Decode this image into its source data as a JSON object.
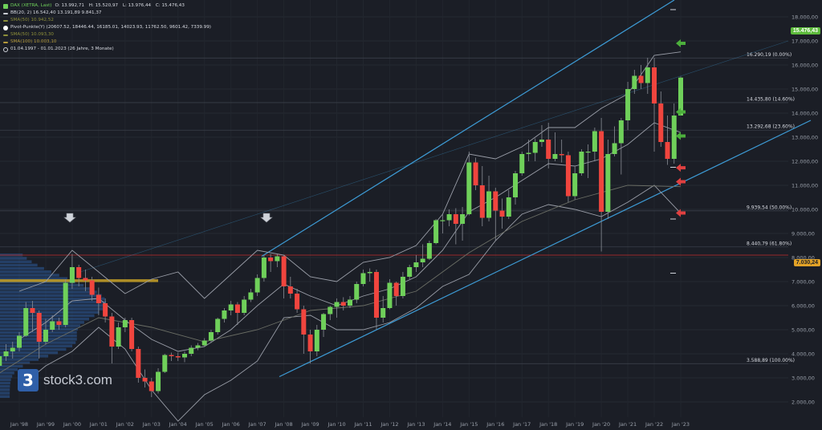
{
  "legend": {
    "instrument": "DAX (XETRA, Last)",
    "ohlc": {
      "o": "O: 13.992,71",
      "h": "H: 15.520,97",
      "l": "L: 13.976,44",
      "c": "C: 15.476,43"
    },
    "bb": "BB(20, 2)  16.542,40  13.191,89  9.841,37",
    "sma_a": "SMA(50)  10.942,52",
    "pivot": "Pivot-Punkte(Y)  (20607.52,  18446.44,  16185.01,  14023.93,  11762.50,  9601.42,  7339.99)",
    "sma_b": "SMA(50)  10.093,30",
    "sma_c": "SMA(100)  10.003,10",
    "period": "01.04.1997 - 01.01.2023   (26 Jahre, 3 Monate)",
    "colors": {
      "instrument": "#6fd05a",
      "bb": "#c9ccd3",
      "sma": "#8d8f3a",
      "pivot": "#ffffff",
      "sma_b": "#b59a3a"
    }
  },
  "logo": {
    "mark": "3",
    "text": "stock3.com"
  },
  "price_tags": {
    "last": "15.476,43",
    "level": "7.030,24",
    "last_color": "#5dbb3c",
    "level_color": "#e2a227"
  },
  "chart_data": {
    "type": "candlestick",
    "x": [
      "Jan '98",
      "Jan '99",
      "Jan '00",
      "Jan '01",
      "Jan '02",
      "Jan '03",
      "Jan '04",
      "Jan '05",
      "Jan '06",
      "Jan '07",
      "Jan '08",
      "Jan '09",
      "Jan '10",
      "Jan '11",
      "Jan '12",
      "Jan '13",
      "Jan '14",
      "Jan '15",
      "Jan '16",
      "Jan '17",
      "Jan '18",
      "Jan '19",
      "Jan '20",
      "Jan '21",
      "Jan '22",
      "Jan '23"
    ],
    "y_ticks": [
      "18.000,00",
      "17.000,00",
      "16.000,00",
      "15.000,00",
      "14.000,00",
      "13.000,00",
      "12.000,00",
      "11.000,00",
      "10.000,00",
      "9.000,00",
      "8.000,00",
      "7.000,00",
      "6.000,00",
      "5.000,00",
      "4.000,00",
      "3.000,00",
      "2.000,00"
    ],
    "ylim": [
      1500,
      18600
    ],
    "fib_levels": [
      {
        "value": 16290.19,
        "label": "16.290,19 (0.00%)"
      },
      {
        "value": 14435.8,
        "label": "14.435,80 (14.60%)"
      },
      {
        "value": 13292.68,
        "label": "13.292,68 (23.60%)"
      },
      {
        "value": 9939.54,
        "label": "9.939,54 (50.00%)"
      },
      {
        "value": 8440.79,
        "label": "8.440,79 (61.80%)"
      },
      {
        "value": 3588.89,
        "label": "3.588,89 (100.00%)"
      }
    ],
    "candles": [
      {
        "t": 1997.25,
        "o": 3500,
        "c": 3900,
        "h": 4150,
        "l": 3400
      },
      {
        "t": 1997.5,
        "o": 3900,
        "c": 4100,
        "h": 4400,
        "l": 3700
      },
      {
        "t": 1997.75,
        "o": 4100,
        "c": 4250,
        "h": 4500,
        "l": 3800
      },
      {
        "t": 1998.0,
        "o": 4250,
        "c": 4750,
        "h": 4900,
        "l": 4100
      },
      {
        "t": 1998.25,
        "o": 4750,
        "c": 5900,
        "h": 6150,
        "l": 4700
      },
      {
        "t": 1998.5,
        "o": 5900,
        "c": 5700,
        "h": 6200,
        "l": 4900
      },
      {
        "t": 1998.75,
        "o": 5700,
        "c": 4500,
        "h": 5800,
        "l": 3800
      },
      {
        "t": 1999.0,
        "o": 4500,
        "c": 5000,
        "h": 5450,
        "l": 4400
      },
      {
        "t": 1999.25,
        "o": 5000,
        "c": 5350,
        "h": 5600,
        "l": 4900
      },
      {
        "t": 1999.5,
        "o": 5350,
        "c": 5200,
        "h": 5500,
        "l": 5000
      },
      {
        "t": 1999.75,
        "o": 5200,
        "c": 6950,
        "h": 7100,
        "l": 5100
      },
      {
        "t": 2000.0,
        "o": 6950,
        "c": 7600,
        "h": 8150,
        "l": 6700
      },
      {
        "t": 2000.25,
        "o": 7600,
        "c": 7150,
        "h": 7700,
        "l": 6800
      },
      {
        "t": 2000.5,
        "o": 7150,
        "c": 7050,
        "h": 7500,
        "l": 6600
      },
      {
        "t": 2000.75,
        "o": 7050,
        "c": 6450,
        "h": 7200,
        "l": 6200
      },
      {
        "t": 2001.0,
        "o": 6450,
        "c": 6100,
        "h": 6750,
        "l": 5600
      },
      {
        "t": 2001.25,
        "o": 6100,
        "c": 5550,
        "h": 6300,
        "l": 5300
      },
      {
        "t": 2001.5,
        "o": 5550,
        "c": 4300,
        "h": 5700,
        "l": 3600
      },
      {
        "t": 2001.75,
        "o": 4300,
        "c": 5100,
        "h": 5300,
        "l": 4200
      },
      {
        "t": 2002.0,
        "o": 5100,
        "c": 5400,
        "h": 5500,
        "l": 4900
      },
      {
        "t": 2002.25,
        "o": 5400,
        "c": 4200,
        "h": 5500,
        "l": 4100
      },
      {
        "t": 2002.5,
        "o": 4200,
        "c": 3000,
        "h": 4300,
        "l": 2800
      },
      {
        "t": 2002.75,
        "o": 3000,
        "c": 2850,
        "h": 3350,
        "l": 2600
      },
      {
        "t": 2003.0,
        "o": 2850,
        "c": 2450,
        "h": 3000,
        "l": 2200
      },
      {
        "t": 2003.25,
        "o": 2450,
        "c": 3250,
        "h": 3400,
        "l": 2350
      },
      {
        "t": 2003.5,
        "o": 3250,
        "c": 3950,
        "h": 4000,
        "l": 3200
      },
      {
        "t": 2003.75,
        "o": 3950,
        "c": 3900,
        "h": 4050,
        "l": 3700
      },
      {
        "t": 2004.0,
        "o": 3900,
        "c": 3850,
        "h": 4050,
        "l": 3700
      },
      {
        "t": 2004.25,
        "o": 3850,
        "c": 4000,
        "h": 4100,
        "l": 3650
      },
      {
        "t": 2004.5,
        "o": 4000,
        "c": 4250,
        "h": 4350,
        "l": 3900
      },
      {
        "t": 2004.75,
        "o": 4250,
        "c": 4350,
        "h": 4450,
        "l": 4150
      },
      {
        "t": 2005.0,
        "o": 4350,
        "c": 4550,
        "h": 4650,
        "l": 4300
      },
      {
        "t": 2005.25,
        "o": 4550,
        "c": 4900,
        "h": 5000,
        "l": 4450
      },
      {
        "t": 2005.5,
        "o": 4900,
        "c": 5450,
        "h": 5500,
        "l": 4800
      },
      {
        "t": 2005.75,
        "o": 5450,
        "c": 5800,
        "h": 5900,
        "l": 5300
      },
      {
        "t": 2006.0,
        "o": 5800,
        "c": 6050,
        "h": 6200,
        "l": 5600
      },
      {
        "t": 2006.25,
        "o": 6050,
        "c": 5700,
        "h": 6150,
        "l": 5200
      },
      {
        "t": 2006.5,
        "o": 5700,
        "c": 6250,
        "h": 6400,
        "l": 5600
      },
      {
        "t": 2006.75,
        "o": 6250,
        "c": 6550,
        "h": 6700,
        "l": 6150
      },
      {
        "t": 2007.0,
        "o": 6550,
        "c": 7150,
        "h": 7300,
        "l": 6400
      },
      {
        "t": 2007.25,
        "o": 7150,
        "c": 8000,
        "h": 8100,
        "l": 7000
      },
      {
        "t": 2007.5,
        "o": 8000,
        "c": 7850,
        "h": 8150,
        "l": 7400
      },
      {
        "t": 2007.75,
        "o": 7850,
        "c": 8050,
        "h": 8150,
        "l": 7600
      },
      {
        "t": 2008.0,
        "o": 8050,
        "c": 6800,
        "h": 8100,
        "l": 6300
      },
      {
        "t": 2008.25,
        "o": 6800,
        "c": 6500,
        "h": 7200,
        "l": 6300
      },
      {
        "t": 2008.5,
        "o": 6500,
        "c": 5850,
        "h": 6700,
        "l": 5700
      },
      {
        "t": 2008.75,
        "o": 5850,
        "c": 4800,
        "h": 6000,
        "l": 4000
      },
      {
        "t": 2009.0,
        "o": 4800,
        "c": 4100,
        "h": 5000,
        "l": 3600
      },
      {
        "t": 2009.25,
        "o": 4100,
        "c": 5000,
        "h": 5200,
        "l": 3900
      },
      {
        "t": 2009.5,
        "o": 5000,
        "c": 5650,
        "h": 5700,
        "l": 4700
      },
      {
        "t": 2009.75,
        "o": 5650,
        "c": 5950,
        "h": 6000,
        "l": 5400
      },
      {
        "t": 2010.0,
        "o": 5950,
        "c": 6150,
        "h": 6300,
        "l": 5500
      },
      {
        "t": 2010.25,
        "o": 6150,
        "c": 6000,
        "h": 6350,
        "l": 5800
      },
      {
        "t": 2010.5,
        "o": 6000,
        "c": 6250,
        "h": 6400,
        "l": 5900
      },
      {
        "t": 2010.75,
        "o": 6250,
        "c": 6900,
        "h": 7000,
        "l": 6100
      },
      {
        "t": 2011.0,
        "o": 6900,
        "c": 7350,
        "h": 7500,
        "l": 6800
      },
      {
        "t": 2011.25,
        "o": 7350,
        "c": 7400,
        "h": 7550,
        "l": 7000
      },
      {
        "t": 2011.5,
        "o": 7400,
        "c": 5500,
        "h": 7500,
        "l": 5000
      },
      {
        "t": 2011.75,
        "o": 5500,
        "c": 5900,
        "h": 6400,
        "l": 5300
      },
      {
        "t": 2012.0,
        "o": 5900,
        "c": 6950,
        "h": 7100,
        "l": 5850
      },
      {
        "t": 2012.25,
        "o": 6950,
        "c": 6400,
        "h": 7000,
        "l": 6000
      },
      {
        "t": 2012.5,
        "o": 6400,
        "c": 7200,
        "h": 7400,
        "l": 6300
      },
      {
        "t": 2012.75,
        "o": 7200,
        "c": 7600,
        "h": 7700,
        "l": 7100
      },
      {
        "t": 2013.0,
        "o": 7600,
        "c": 7800,
        "h": 8100,
        "l": 7400
      },
      {
        "t": 2013.25,
        "o": 7800,
        "c": 7950,
        "h": 8550,
        "l": 7600
      },
      {
        "t": 2013.5,
        "o": 7950,
        "c": 8600,
        "h": 8700,
        "l": 7900
      },
      {
        "t": 2013.75,
        "o": 8600,
        "c": 9550,
        "h": 9600,
        "l": 8550
      },
      {
        "t": 2014.0,
        "o": 9550,
        "c": 9550,
        "h": 9800,
        "l": 9000
      },
      {
        "t": 2014.25,
        "o": 9550,
        "c": 9800,
        "h": 10000,
        "l": 9300
      },
      {
        "t": 2014.5,
        "o": 9800,
        "c": 9400,
        "h": 10050,
        "l": 8550
      },
      {
        "t": 2014.75,
        "o": 9400,
        "c": 9800,
        "h": 10100,
        "l": 8700
      },
      {
        "t": 2015.0,
        "o": 9800,
        "c": 11950,
        "h": 12400,
        "l": 9750
      },
      {
        "t": 2015.25,
        "o": 11950,
        "c": 11000,
        "h": 12150,
        "l": 10800
      },
      {
        "t": 2015.5,
        "o": 11000,
        "c": 9650,
        "h": 11800,
        "l": 9300
      },
      {
        "t": 2015.75,
        "o": 9650,
        "c": 10750,
        "h": 11400,
        "l": 9500
      },
      {
        "t": 2016.0,
        "o": 10750,
        "c": 9950,
        "h": 10900,
        "l": 8700
      },
      {
        "t": 2016.25,
        "o": 9950,
        "c": 9700,
        "h": 10450,
        "l": 9200
      },
      {
        "t": 2016.5,
        "o": 9700,
        "c": 10500,
        "h": 10800,
        "l": 9600
      },
      {
        "t": 2016.75,
        "o": 10500,
        "c": 11500,
        "h": 11600,
        "l": 10200
      },
      {
        "t": 2017.0,
        "o": 11500,
        "c": 12300,
        "h": 12400,
        "l": 11400
      },
      {
        "t": 2017.25,
        "o": 12300,
        "c": 12350,
        "h": 12900,
        "l": 12000
      },
      {
        "t": 2017.5,
        "o": 12350,
        "c": 12800,
        "h": 12950,
        "l": 12000
      },
      {
        "t": 2017.75,
        "o": 12800,
        "c": 12900,
        "h": 13500,
        "l": 12600
      },
      {
        "t": 2018.0,
        "o": 12900,
        "c": 12100,
        "h": 13600,
        "l": 11700
      },
      {
        "t": 2018.25,
        "o": 12100,
        "c": 12300,
        "h": 13200,
        "l": 12000
      },
      {
        "t": 2018.5,
        "o": 12300,
        "c": 12250,
        "h": 12900,
        "l": 11950
      },
      {
        "t": 2018.75,
        "o": 12250,
        "c": 10550,
        "h": 12400,
        "l": 10300
      },
      {
        "t": 2019.0,
        "o": 10550,
        "c": 11500,
        "h": 11800,
        "l": 10400
      },
      {
        "t": 2019.25,
        "o": 11500,
        "c": 12400,
        "h": 12500,
        "l": 11400
      },
      {
        "t": 2019.5,
        "o": 12400,
        "c": 12400,
        "h": 12700,
        "l": 11300
      },
      {
        "t": 2019.75,
        "o": 12400,
        "c": 13250,
        "h": 13400,
        "l": 12000
      },
      {
        "t": 2020.0,
        "o": 13250,
        "c": 9900,
        "h": 13800,
        "l": 8250
      },
      {
        "t": 2020.25,
        "o": 9900,
        "c": 12300,
        "h": 12900,
        "l": 9600
      },
      {
        "t": 2020.5,
        "o": 12300,
        "c": 12750,
        "h": 13450,
        "l": 12200
      },
      {
        "t": 2020.75,
        "o": 12750,
        "c": 13700,
        "h": 13800,
        "l": 11450
      },
      {
        "t": 2021.0,
        "o": 13700,
        "c": 15000,
        "h": 15300,
        "l": 13300
      },
      {
        "t": 2021.25,
        "o": 15000,
        "c": 15550,
        "h": 15800,
        "l": 14800
      },
      {
        "t": 2021.5,
        "o": 15550,
        "c": 15250,
        "h": 16000,
        "l": 15000
      },
      {
        "t": 2021.75,
        "o": 15250,
        "c": 15900,
        "h": 16300,
        "l": 14800
      },
      {
        "t": 2022.0,
        "o": 15900,
        "c": 14400,
        "h": 16300,
        "l": 12400
      },
      {
        "t": 2022.25,
        "o": 14400,
        "c": 12800,
        "h": 14900,
        "l": 12600
      },
      {
        "t": 2022.5,
        "o": 12800,
        "c": 12100,
        "h": 13900,
        "l": 11850
      },
      {
        "t": 2022.75,
        "o": 12100,
        "c": 13900,
        "h": 14400,
        "l": 11900
      },
      {
        "t": 2023.0,
        "o": 13900,
        "c": 15476,
        "h": 15521,
        "l": 13976
      }
    ],
    "bb_upper": [
      [
        1998,
        6600
      ],
      [
        1999,
        7000
      ],
      [
        2000,
        8300
      ],
      [
        2001,
        7400
      ],
      [
        2002,
        6500
      ],
      [
        2003,
        7100
      ],
      [
        2004,
        7400
      ],
      [
        2005,
        6300
      ],
      [
        2006,
        7300
      ],
      [
        2007,
        8300
      ],
      [
        2008,
        8100
      ],
      [
        2009,
        7200
      ],
      [
        2010,
        7000
      ],
      [
        2011,
        7800
      ],
      [
        2012,
        8000
      ],
      [
        2013,
        8500
      ],
      [
        2014,
        9800
      ],
      [
        2015,
        12300
      ],
      [
        2016,
        12100
      ],
      [
        2017,
        12600
      ],
      [
        2018,
        13400
      ],
      [
        2019,
        13400
      ],
      [
        2020,
        14200
      ],
      [
        2021,
        14800
      ],
      [
        2022,
        16400
      ],
      [
        2023,
        16542
      ]
    ],
    "bb_middle": [
      [
        1998,
        4600
      ],
      [
        1999,
        5300
      ],
      [
        2000,
        6200
      ],
      [
        2001,
        6300
      ],
      [
        2002,
        5400
      ],
      [
        2003,
        4600
      ],
      [
        2004,
        4100
      ],
      [
        2005,
        4300
      ],
      [
        2006,
        5000
      ],
      [
        2007,
        6000
      ],
      [
        2008,
        6900
      ],
      [
        2009,
        6400
      ],
      [
        2010,
        6000
      ],
      [
        2011,
        6400
      ],
      [
        2012,
        6700
      ],
      [
        2013,
        7200
      ],
      [
        2014,
        8300
      ],
      [
        2015,
        9900
      ],
      [
        2016,
        10500
      ],
      [
        2017,
        11200
      ],
      [
        2018,
        11900
      ],
      [
        2019,
        11800
      ],
      [
        2020,
        12100
      ],
      [
        2021,
        12700
      ],
      [
        2022,
        13600
      ],
      [
        2023,
        13192
      ]
    ],
    "bb_lower": [
      [
        1998,
        2600
      ],
      [
        1999,
        3500
      ],
      [
        2000,
        4100
      ],
      [
        2001,
        5100
      ],
      [
        2002,
        4200
      ],
      [
        2003,
        2500
      ],
      [
        2004,
        1200
      ],
      [
        2005,
        2300
      ],
      [
        2006,
        2900
      ],
      [
        2007,
        3700
      ],
      [
        2008,
        5500
      ],
      [
        2009,
        5600
      ],
      [
        2010,
        5000
      ],
      [
        2011,
        5000
      ],
      [
        2012,
        5300
      ],
      [
        2013,
        5900
      ],
      [
        2014,
        6800
      ],
      [
        2015,
        7300
      ],
      [
        2016,
        8700
      ],
      [
        2017,
        9800
      ],
      [
        2018,
        10200
      ],
      [
        2019,
        10000
      ],
      [
        2020,
        9700
      ],
      [
        2021,
        10300
      ],
      [
        2022,
        11000
      ],
      [
        2023,
        9841
      ]
    ],
    "sma": [
      [
        1997.25,
        3200
      ],
      [
        1999,
        4400
      ],
      [
        2001,
        5500
      ],
      [
        2003,
        5100
      ],
      [
        2005,
        4500
      ],
      [
        2007,
        5000
      ],
      [
        2009,
        5800
      ],
      [
        2011,
        6000
      ],
      [
        2013,
        6600
      ],
      [
        2015,
        8200
      ],
      [
        2017,
        9500
      ],
      [
        2019,
        10400
      ],
      [
        2021,
        11000
      ],
      [
        2023,
        10943
      ]
    ]
  }
}
